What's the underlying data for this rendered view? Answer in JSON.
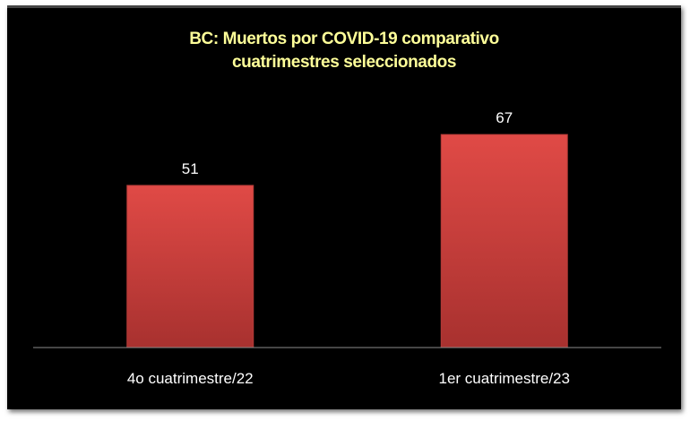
{
  "chart_data": {
    "type": "bar",
    "title": [
      "BC: Muertos por COVID-19 comparativo",
      "cuatrimestres seleccionados"
    ],
    "categories": [
      "4o cuatrimestre/22",
      "1er cuatrimestre/23"
    ],
    "values": [
      51,
      67
    ],
    "data_labels": [
      "51",
      "67"
    ],
    "xlabel": "",
    "ylabel": "",
    "ylim": [
      0,
      80
    ],
    "grid": false,
    "legend": "none",
    "colors": {
      "background": "#000000",
      "bar": "#d9423f",
      "title": "#ffff99",
      "text": "#ffffff",
      "axis": "#8c8c8c"
    }
  }
}
